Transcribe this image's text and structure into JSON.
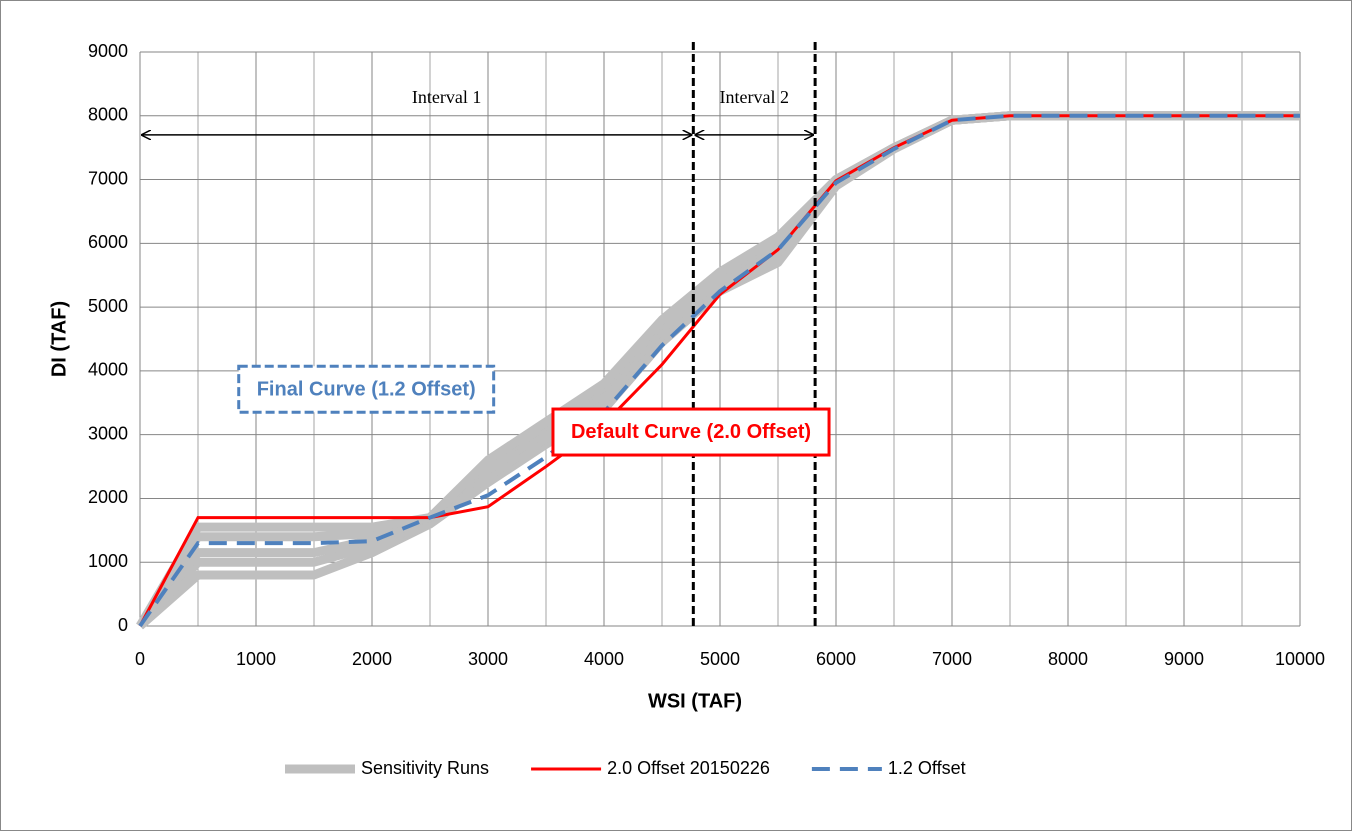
{
  "chart_data": {
    "type": "line",
    "xlabel": "WSI (TAF)",
    "ylabel": "DI (TAF)",
    "xlim": [
      0,
      10000
    ],
    "ylim": [
      0,
      9000
    ],
    "xticks": [
      0,
      1000,
      2000,
      3000,
      4000,
      5000,
      6000,
      7000,
      8000,
      9000,
      10000
    ],
    "yticks": [
      0,
      1000,
      2000,
      3000,
      4000,
      5000,
      6000,
      7000,
      8000,
      9000
    ],
    "xgrid": [
      500,
      1500,
      2500,
      3500,
      4500,
      5500,
      6500,
      7500,
      8500,
      9500
    ],
    "grid": true,
    "legend": "bottom",
    "x": [
      0,
      500,
      1000,
      1500,
      2000,
      2500,
      3000,
      3500,
      4000,
      4500,
      5000,
      5500,
      6000,
      6500,
      7000,
      7500,
      8000,
      8500,
      9000,
      9500,
      10000
    ],
    "sensitivity": {
      "name": "Sensitivity Runs",
      "color": "#bfbfbf",
      "runs": [
        [
          0,
          800,
          800,
          800,
          1150,
          1600,
          2250,
          2850,
          3400,
          4450,
          5250,
          5700,
          6900,
          7480,
          7930,
          8000,
          8000,
          8000,
          8000,
          8000,
          8000
        ],
        [
          0,
          1000,
          1000,
          1000,
          1250,
          1650,
          2350,
          2950,
          3550,
          4550,
          5350,
          5850,
          6950,
          7490,
          7930,
          8000,
          8000,
          8000,
          8000,
          8000,
          8000
        ],
        [
          0,
          1150,
          1150,
          1150,
          1350,
          1700,
          2450,
          3050,
          3650,
          4650,
          5450,
          5950,
          6980,
          7500,
          7930,
          8000,
          8000,
          8000,
          8000,
          8000,
          8000
        ],
        [
          0,
          1400,
          1400,
          1400,
          1450,
          1700,
          2550,
          3150,
          3750,
          4750,
          5500,
          6050,
          7000,
          7500,
          7930,
          8000,
          8000,
          8000,
          8000,
          8000,
          8000
        ],
        [
          0,
          1550,
          1550,
          1550,
          1550,
          1700,
          2600,
          3200,
          3800,
          4800,
          5550,
          6100,
          7000,
          7500,
          7930,
          8000,
          8000,
          8000,
          8000,
          8000,
          8000
        ]
      ]
    },
    "series": [
      {
        "name": "2.0 Offset 20150226",
        "color": "#ff0000",
        "dash": false,
        "values": [
          0,
          1700,
          1700,
          1700,
          1700,
          1700,
          1870,
          2500,
          3170,
          4100,
          5200,
          5900,
          6980,
          7500,
          7930,
          8000,
          8000,
          8000,
          8000,
          8000,
          8000
        ]
      },
      {
        "name": "1.2 Offset",
        "color": "#4f81bd",
        "dash": true,
        "values": [
          0,
          1300,
          1300,
          1300,
          1330,
          1700,
          2050,
          2650,
          3350,
          4400,
          5250,
          5900,
          6950,
          7480,
          7930,
          8000,
          8000,
          8000,
          8000,
          8000,
          8000
        ]
      }
    ],
    "vlines": [
      4770,
      5820
    ],
    "intervals": [
      {
        "label": "Interval 1",
        "x0": 0,
        "x1": 4770,
        "y": 7700
      },
      {
        "label": "Interval 2",
        "x0": 4770,
        "x1": 5820,
        "y": 7700
      }
    ],
    "annotations": [
      {
        "text": "Final Curve (1.2 Offset)",
        "color": "#4f81bd",
        "x": 1950,
        "y": 3700,
        "dash": true
      },
      {
        "text": "Default Curve (2.0 Offset)",
        "color": "#ff0000",
        "x": 4750,
        "y": 3030,
        "dash": false
      }
    ]
  }
}
